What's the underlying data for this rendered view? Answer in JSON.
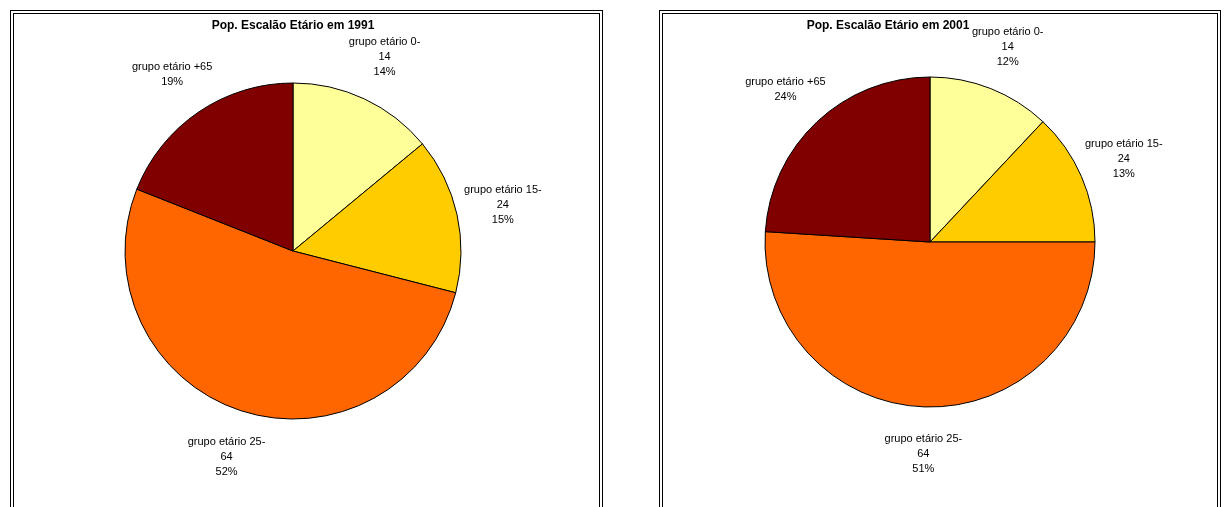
{
  "chart_data": [
    {
      "type": "pie",
      "title": "Pop. Escalão Etário em 1991",
      "categories": [
        "grupo etário 0-14",
        "grupo etário 15-24",
        "grupo etário 25-64",
        "grupo etário +65"
      ],
      "values": [
        14,
        15,
        52,
        19
      ],
      "value_labels": [
        "14%",
        "15%",
        "52%",
        "19%"
      ],
      "colors": [
        "#ffff99",
        "#ffcc00",
        "#ff6600",
        "#800000"
      ]
    },
    {
      "type": "pie",
      "title": "Pop. Escalão Etário em 2001",
      "categories": [
        "grupo etário 0-14",
        "grupo etário 15-24",
        "grupo etário 25-64",
        "grupo etário +65"
      ],
      "values": [
        12,
        13,
        51,
        24
      ],
      "value_labels": [
        "12%",
        "13%",
        "51%",
        "24%"
      ],
      "colors": [
        "#ffff99",
        "#ffcc00",
        "#ff6600",
        "#800000"
      ]
    }
  ]
}
